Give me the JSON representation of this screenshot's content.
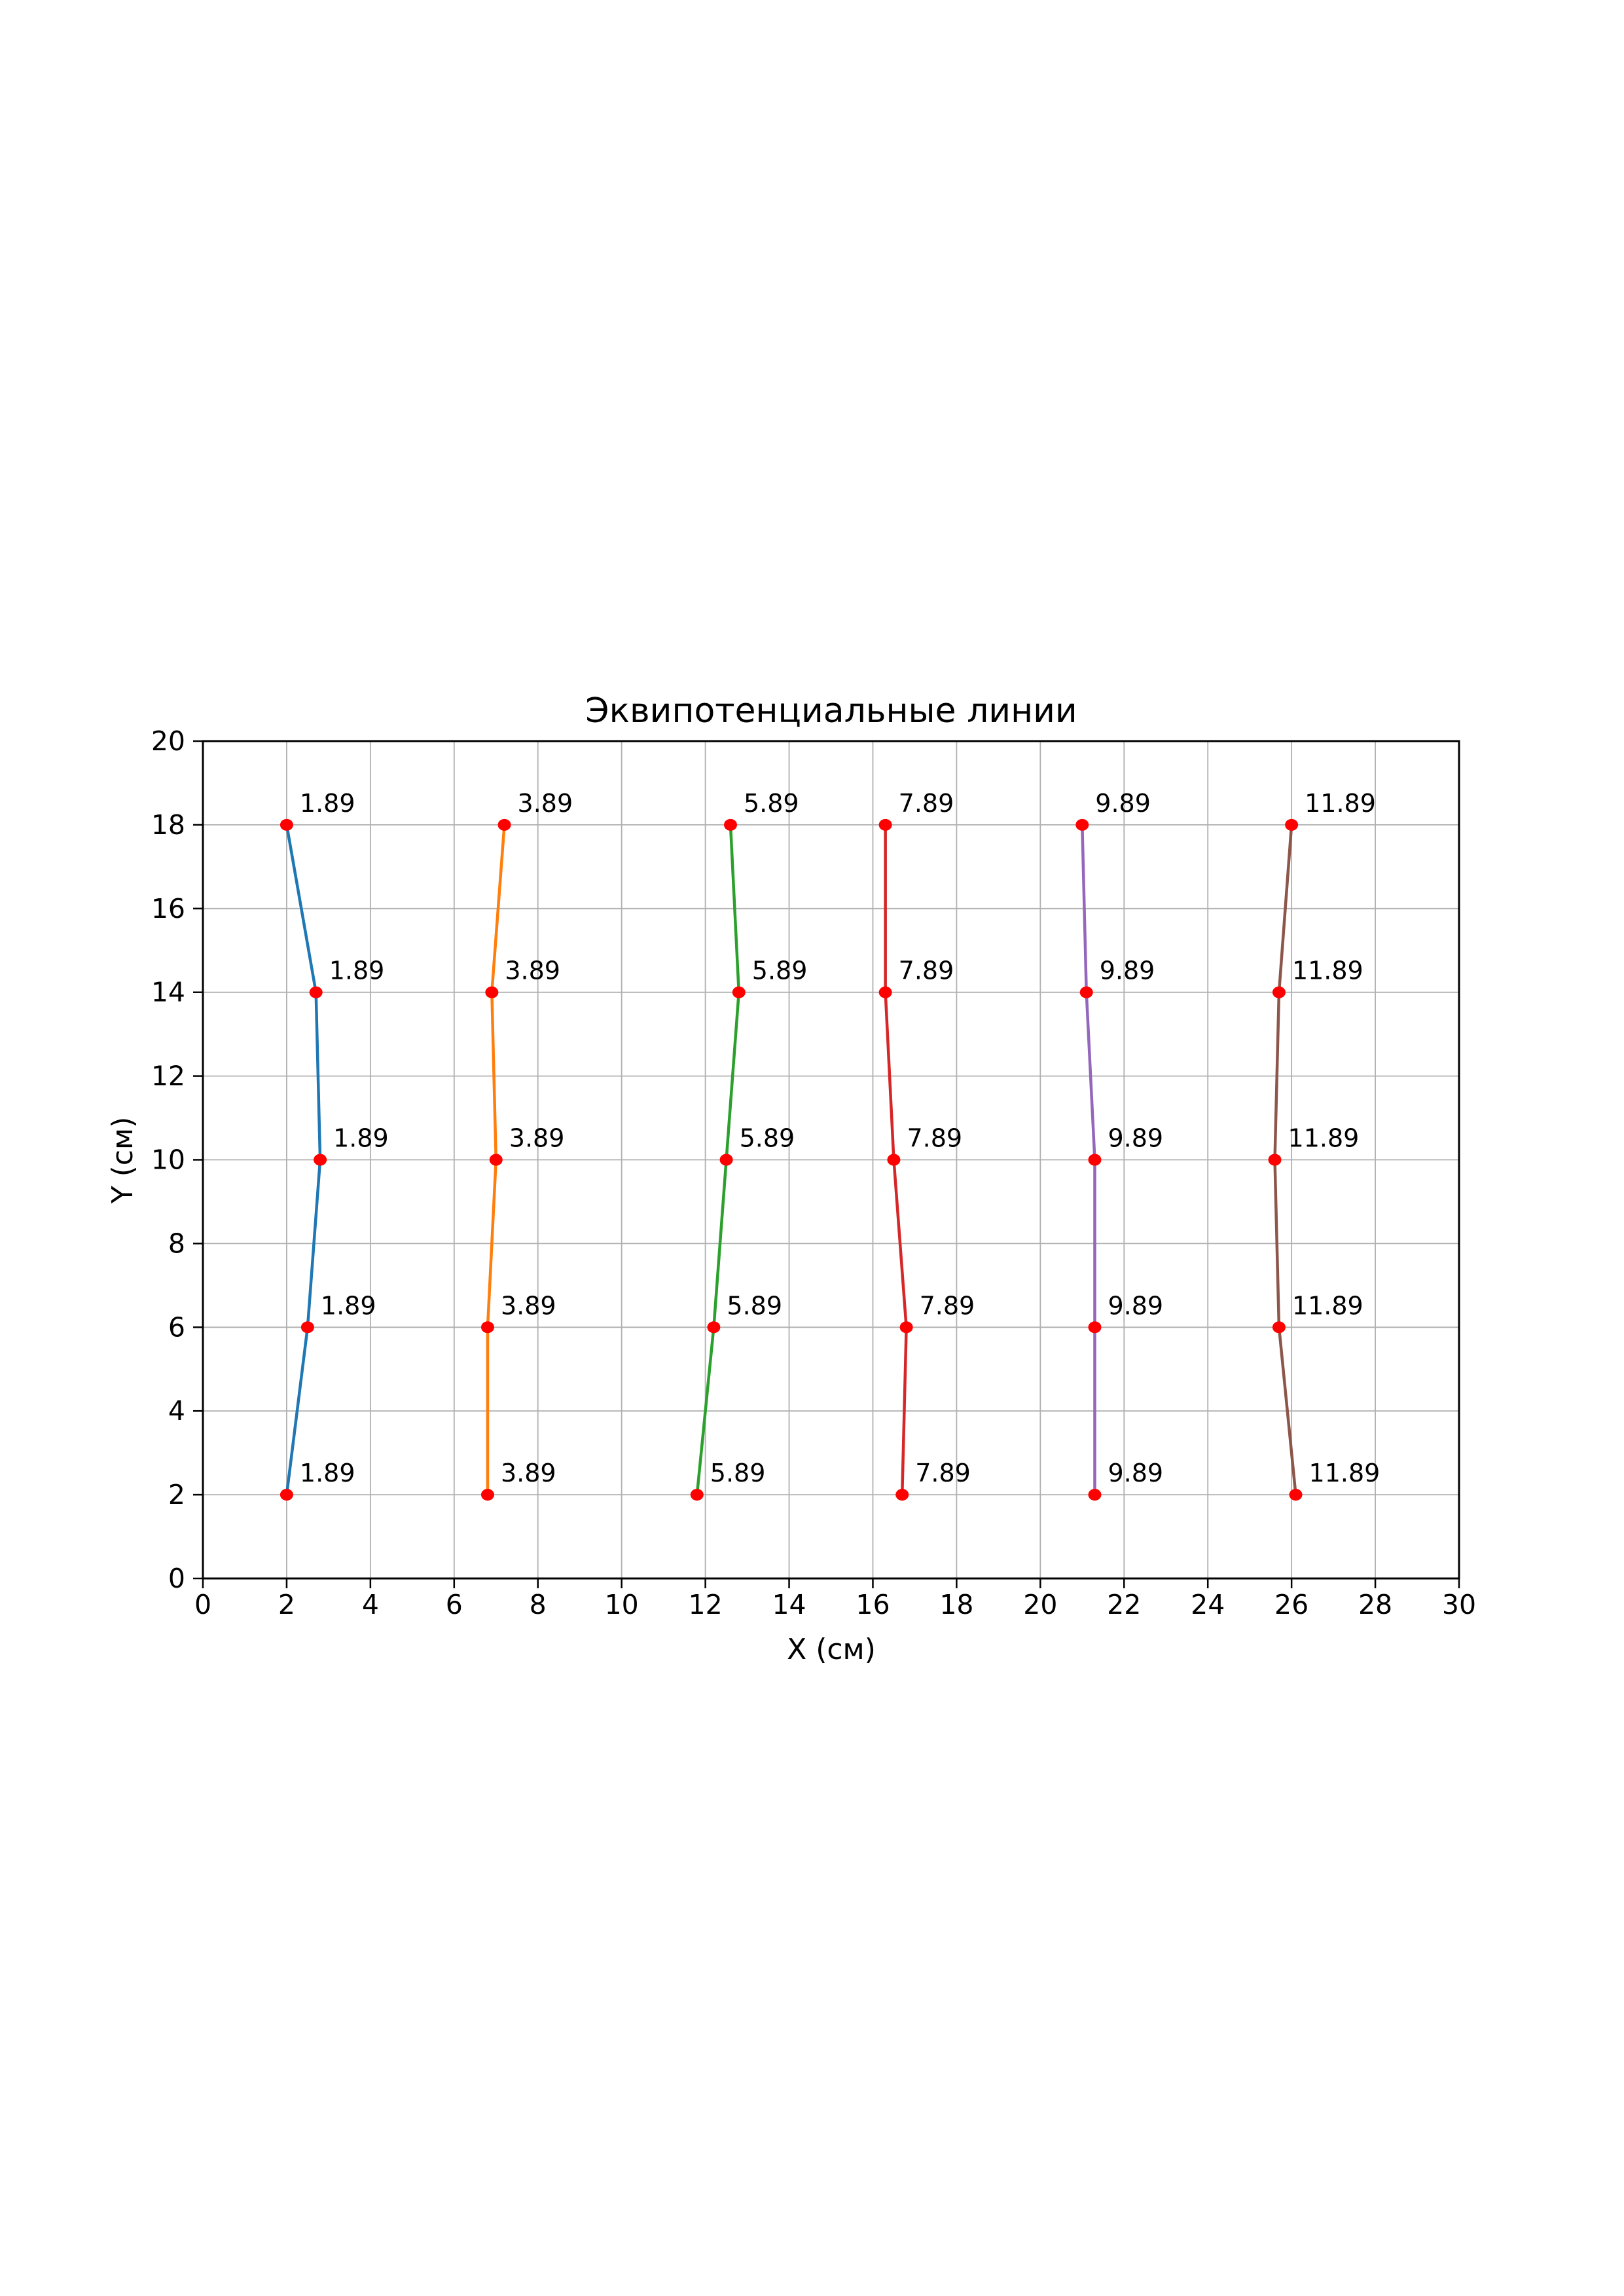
{
  "page": {
    "background_color": "#ffffff"
  },
  "chart_data": {
    "type": "line",
    "title": "Эквипотенциальные линии",
    "xlabel": "X (см)",
    "ylabel": "Y (см)",
    "xlim": [
      0,
      30
    ],
    "ylim": [
      0,
      20
    ],
    "xticks": [
      0,
      2,
      4,
      6,
      8,
      10,
      12,
      14,
      16,
      18,
      20,
      22,
      24,
      26,
      28,
      30
    ],
    "yticks": [
      0,
      2,
      4,
      6,
      8,
      10,
      12,
      14,
      16,
      18,
      20
    ],
    "grid": true,
    "grid_color": "#b0b0b0",
    "legend": false,
    "marker": {
      "shape": "ellipse",
      "color": "#ff0000"
    },
    "annotation_color": "#000000",
    "y": [
      2,
      6,
      10,
      14,
      18
    ],
    "series": [
      {
        "label": "1.89",
        "color": "#1f77b4",
        "x": [
          2.0,
          2.5,
          2.8,
          2.7,
          2.0
        ]
      },
      {
        "label": "3.89",
        "color": "#ff7f0e",
        "x": [
          6.8,
          6.8,
          7.0,
          6.9,
          7.2
        ]
      },
      {
        "label": "5.89",
        "color": "#2ca02c",
        "x": [
          11.8,
          12.2,
          12.5,
          12.8,
          12.6
        ]
      },
      {
        "label": "7.89",
        "color": "#d62728",
        "x": [
          16.7,
          16.8,
          16.5,
          16.3,
          16.3
        ]
      },
      {
        "label": "9.89",
        "color": "#9467bd",
        "x": [
          21.3,
          21.3,
          21.3,
          21.1,
          21.0
        ]
      },
      {
        "label": "11.89",
        "color": "#8c564b",
        "x": [
          26.1,
          25.7,
          25.6,
          25.7,
          26.0
        ]
      }
    ]
  }
}
